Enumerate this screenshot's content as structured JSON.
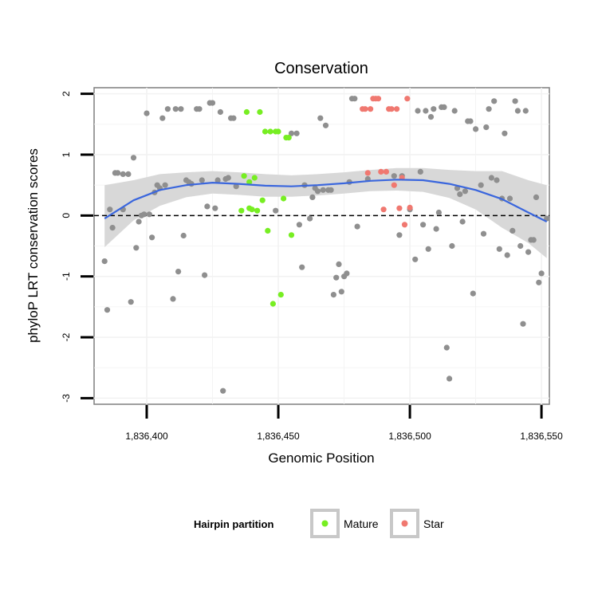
{
  "chart_data": {
    "type": "scatter",
    "title": "Conservation",
    "xlabel": "Genomic Position",
    "ylabel": "phyloP LRT conservation scores",
    "xlim": [
      1836380,
      1836553
    ],
    "ylim": [
      -3.1,
      2.1
    ],
    "x_ticks": [
      1836400,
      1836450,
      1836500,
      1836550
    ],
    "x_tick_labels": [
      "1,836,400",
      "1,836,450",
      "1,836,500",
      "1,836,550"
    ],
    "y_ticks": [
      -3,
      -2,
      -1,
      0,
      1,
      2
    ],
    "y_tick_labels": [
      "-3",
      "-2",
      "-1",
      "0",
      "1",
      "2"
    ],
    "reference_line": {
      "y": 0,
      "style": "dashed"
    },
    "grid": true,
    "legend": {
      "title": "Hairpin partition",
      "placement": "bottom",
      "entries": [
        {
          "label": "Mature",
          "color": "#77ee22"
        },
        {
          "label": "Star",
          "color": "#f07870"
        }
      ]
    },
    "colors": {
      "other": "#8f8f8f",
      "mature": "#77ee22",
      "star": "#f07870",
      "smooth": "#3a66dd",
      "band": "#d6d6d6"
    },
    "series": [
      {
        "group": "other",
        "points": [
          [
            1836384,
            -0.75
          ],
          [
            1836385,
            -1.55
          ],
          [
            1836386,
            0.1
          ],
          [
            1836387,
            -0.2
          ],
          [
            1836388,
            0.7
          ],
          [
            1836389,
            0.7
          ],
          [
            1836391,
            0.68
          ],
          [
            1836391,
            0.1
          ],
          [
            1836393,
            0.68
          ],
          [
            1836394,
            -1.42
          ],
          [
            1836395,
            0.95
          ],
          [
            1836396,
            -0.53
          ],
          [
            1836397,
            -0.1
          ],
          [
            1836398,
            0.0
          ],
          [
            1836399,
            0.02
          ],
          [
            1836400,
            1.68
          ],
          [
            1836401,
            0.02
          ],
          [
            1836402,
            -0.36
          ],
          [
            1836403,
            0.38
          ],
          [
            1836404,
            0.5
          ],
          [
            1836405,
            0.45
          ],
          [
            1836406,
            1.6
          ],
          [
            1836407,
            0.5
          ],
          [
            1836408,
            1.75
          ],
          [
            1836410,
            -1.37
          ],
          [
            1836411,
            1.75
          ],
          [
            1836412,
            -0.92
          ],
          [
            1836413,
            1.75
          ],
          [
            1836414,
            -0.33
          ],
          [
            1836415,
            0.58
          ],
          [
            1836416,
            0.55
          ],
          [
            1836417,
            0.52
          ],
          [
            1836419,
            1.75
          ],
          [
            1836420,
            1.75
          ],
          [
            1836421,
            0.58
          ],
          [
            1836422,
            -0.98
          ],
          [
            1836423,
            0.15
          ],
          [
            1836424,
            1.85
          ],
          [
            1836425,
            1.85
          ],
          [
            1836426,
            0.12
          ],
          [
            1836427,
            0.58
          ],
          [
            1836428,
            1.7
          ],
          [
            1836429,
            -2.88
          ],
          [
            1836430,
            0.6
          ],
          [
            1836431,
            0.62
          ],
          [
            1836432,
            1.6
          ],
          [
            1836433,
            1.6
          ],
          [
            1836434,
            0.48
          ],
          [
            1836449,
            0.08
          ],
          [
            1836455,
            1.35
          ],
          [
            1836457,
            1.35
          ],
          [
            1836458,
            -0.15
          ],
          [
            1836459,
            -0.85
          ],
          [
            1836460,
            0.5
          ],
          [
            1836462,
            -0.05
          ],
          [
            1836463,
            0.3
          ],
          [
            1836464,
            0.45
          ],
          [
            1836465,
            0.4
          ],
          [
            1836466,
            1.6
          ],
          [
            1836467,
            0.42
          ],
          [
            1836468,
            1.48
          ],
          [
            1836469,
            0.42
          ],
          [
            1836470,
            0.42
          ],
          [
            1836471,
            -1.3
          ],
          [
            1836472,
            -1.02
          ],
          [
            1836473,
            -0.8
          ],
          [
            1836474,
            -1.25
          ],
          [
            1836475,
            -1.0
          ],
          [
            1836476,
            -0.95
          ],
          [
            1836477,
            0.55
          ],
          [
            1836478,
            1.92
          ],
          [
            1836479,
            1.92
          ],
          [
            1836480,
            -0.18
          ],
          [
            1836484,
            0.6
          ],
          [
            1836494,
            0.65
          ],
          [
            1836496,
            -0.32
          ],
          [
            1836497,
            0.65
          ],
          [
            1836500,
            0.1
          ],
          [
            1836502,
            -0.72
          ],
          [
            1836503,
            1.72
          ],
          [
            1836504,
            0.72
          ],
          [
            1836505,
            -0.15
          ],
          [
            1836506,
            1.72
          ],
          [
            1836507,
            -0.55
          ],
          [
            1836508,
            1.62
          ],
          [
            1836509,
            1.75
          ],
          [
            1836510,
            -0.22
          ],
          [
            1836511,
            0.05
          ],
          [
            1836512,
            1.78
          ],
          [
            1836513,
            1.78
          ],
          [
            1836514,
            -2.17
          ],
          [
            1836515,
            -2.68
          ],
          [
            1836516,
            -0.5
          ],
          [
            1836517,
            1.72
          ],
          [
            1836518,
            0.45
          ],
          [
            1836519,
            0.35
          ],
          [
            1836520,
            -0.1
          ],
          [
            1836521,
            0.4
          ],
          [
            1836522,
            1.55
          ],
          [
            1836523,
            1.55
          ],
          [
            1836524,
            -1.28
          ],
          [
            1836525,
            1.42
          ],
          [
            1836527,
            0.5
          ],
          [
            1836528,
            -0.3
          ],
          [
            1836529,
            1.45
          ],
          [
            1836530,
            1.75
          ],
          [
            1836531,
            0.62
          ],
          [
            1836532,
            1.88
          ],
          [
            1836533,
            0.58
          ],
          [
            1836534,
            -0.55
          ],
          [
            1836535,
            0.28
          ],
          [
            1836536,
            1.35
          ],
          [
            1836537,
            -0.65
          ],
          [
            1836538,
            0.28
          ],
          [
            1836539,
            -0.25
          ],
          [
            1836540,
            1.88
          ],
          [
            1836541,
            1.72
          ],
          [
            1836542,
            -0.5
          ],
          [
            1836543,
            -1.78
          ],
          [
            1836544,
            1.72
          ],
          [
            1836545,
            -0.6
          ],
          [
            1836546,
            -0.4
          ],
          [
            1836547,
            -0.4
          ],
          [
            1836548,
            0.3
          ],
          [
            1836549,
            -1.1
          ],
          [
            1836550,
            -0.95
          ],
          [
            1836552,
            -0.05
          ]
        ]
      },
      {
        "group": "mature",
        "points": [
          [
            1836436,
            0.08
          ],
          [
            1836437,
            0.65
          ],
          [
            1836438,
            1.7
          ],
          [
            1836439,
            0.55
          ],
          [
            1836439,
            0.12
          ],
          [
            1836440,
            0.1
          ],
          [
            1836441,
            0.62
          ],
          [
            1836442,
            0.08
          ],
          [
            1836443,
            1.7
          ],
          [
            1836444,
            0.25
          ],
          [
            1836445,
            1.38
          ],
          [
            1836446,
            -0.25
          ],
          [
            1836447,
            1.38
          ],
          [
            1836448,
            -1.45
          ],
          [
            1836449,
            1.38
          ],
          [
            1836450,
            1.38
          ],
          [
            1836451,
            -1.3
          ],
          [
            1836452,
            0.28
          ],
          [
            1836453,
            1.28
          ],
          [
            1836454,
            1.28
          ],
          [
            1836455,
            -0.32
          ]
        ]
      },
      {
        "group": "star",
        "points": [
          [
            1836482,
            1.75
          ],
          [
            1836483,
            1.75
          ],
          [
            1836484,
            0.7
          ],
          [
            1836485,
            1.75
          ],
          [
            1836486,
            1.92
          ],
          [
            1836487,
            1.92
          ],
          [
            1836488,
            1.92
          ],
          [
            1836489,
            0.72
          ],
          [
            1836490,
            0.1
          ],
          [
            1836491,
            0.72
          ],
          [
            1836492,
            1.75
          ],
          [
            1836493,
            1.75
          ],
          [
            1836494,
            0.5
          ],
          [
            1836495,
            1.75
          ],
          [
            1836496,
            0.12
          ],
          [
            1836497,
            0.62
          ],
          [
            1836498,
            -0.15
          ],
          [
            1836499,
            1.92
          ],
          [
            1836500,
            0.13
          ]
        ]
      }
    ],
    "smooth": {
      "x": [
        1836384,
        1836395,
        1836405,
        1836415,
        1836425,
        1836435,
        1836445,
        1836455,
        1836465,
        1836475,
        1836485,
        1836495,
        1836505,
        1836515,
        1836525,
        1836535,
        1836545,
        1836552
      ],
      "y": [
        -0.05,
        0.25,
        0.42,
        0.5,
        0.54,
        0.52,
        0.49,
        0.48,
        0.5,
        0.53,
        0.57,
        0.59,
        0.58,
        0.52,
        0.42,
        0.27,
        0.05,
        -0.1
      ],
      "lower": [
        -0.52,
        -0.08,
        0.16,
        0.3,
        0.36,
        0.34,
        0.31,
        0.31,
        0.33,
        0.36,
        0.4,
        0.41,
        0.39,
        0.29,
        0.1,
        -0.2,
        -0.45,
        -0.7
      ],
      "upper": [
        0.5,
        0.58,
        0.68,
        0.71,
        0.73,
        0.71,
        0.68,
        0.66,
        0.68,
        0.71,
        0.75,
        0.78,
        0.78,
        0.75,
        0.73,
        0.73,
        0.58,
        0.5
      ]
    }
  }
}
